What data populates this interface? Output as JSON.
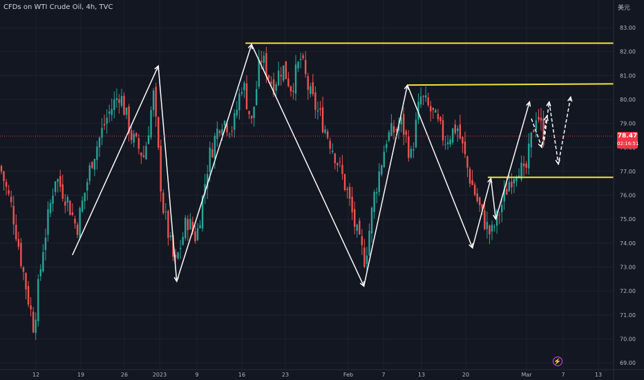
{
  "header": {
    "title": "CFDs on WTI Crude Oil, 4h, TVC",
    "currency": "美元"
  },
  "price_tag": {
    "price": "78.47",
    "countdown": "02:16:51"
  },
  "colors": {
    "background": "#131722",
    "grid": "#1e222d",
    "up": "#26a69a",
    "down": "#ef5350",
    "level_line": "#f5e63c",
    "drawing": "#ffffff",
    "price_line": "#f23645",
    "price_tag_bg": "#f23645",
    "axis_text": "#b2b5be"
  },
  "icons": {
    "replay": "lightning-icon"
  },
  "chart_data": {
    "type": "candlestick",
    "title": "CFDs on WTI Crude Oil, 4h, TVC",
    "y_unit": "美元",
    "ylim": [
      68.8,
      84.0
    ],
    "y_ticks": [
      "83.00",
      "82.00",
      "81.00",
      "80.00",
      "79.00",
      "78.00",
      "77.00",
      "76.00",
      "75.00",
      "74.00",
      "73.00",
      "72.00",
      "71.00",
      "70.00",
      "69.00"
    ],
    "x_ticks": [
      "12",
      "19",
      "26",
      "2023",
      "9",
      "16",
      "23",
      "Feb",
      "7",
      "13",
      "20",
      "Mar",
      "7",
      "13"
    ],
    "last_price": 78.47,
    "grid": true,
    "series": [
      {
        "name": "",
        "approx_close_path": [
          [
            0,
            77.2
          ],
          [
            0.02,
            75.4
          ],
          [
            0.04,
            72.5
          ],
          [
            0.055,
            70.5
          ],
          [
            0.07,
            73.8
          ],
          [
            0.09,
            76.8
          ],
          [
            0.11,
            75.8
          ],
          [
            0.125,
            74.6
          ],
          [
            0.15,
            77.5
          ],
          [
            0.175,
            79.3
          ],
          [
            0.195,
            80.3
          ],
          [
            0.215,
            78.4
          ],
          [
            0.235,
            77.6
          ],
          [
            0.25,
            80.2
          ],
          [
            0.265,
            75.6
          ],
          [
            0.285,
            73.0
          ],
          [
            0.305,
            75.0
          ],
          [
            0.32,
            74.2
          ],
          [
            0.34,
            77.5
          ],
          [
            0.36,
            79.2
          ],
          [
            0.38,
            78.8
          ],
          [
            0.395,
            80.8
          ],
          [
            0.41,
            79.0
          ],
          [
            0.425,
            81.8
          ],
          [
            0.445,
            80.6
          ],
          [
            0.46,
            81.4
          ],
          [
            0.475,
            80.5
          ],
          [
            0.49,
            81.7
          ],
          [
            0.505,
            80.2
          ],
          [
            0.525,
            79.1
          ],
          [
            0.545,
            77.8
          ],
          [
            0.565,
            76.2
          ],
          [
            0.585,
            74.0
          ],
          [
            0.595,
            73.3
          ],
          [
            0.61,
            76.0
          ],
          [
            0.63,
            78.4
          ],
          [
            0.655,
            79.0
          ],
          [
            0.67,
            77.6
          ],
          [
            0.685,
            80.1
          ],
          [
            0.705,
            79.4
          ],
          [
            0.725,
            78.3
          ],
          [
            0.745,
            78.9
          ],
          [
            0.765,
            76.8
          ],
          [
            0.785,
            75.2
          ],
          [
            0.8,
            74.3
          ],
          [
            0.815,
            75.4
          ],
          [
            0.83,
            76.6
          ],
          [
            0.845,
            77.3
          ],
          [
            0.855,
            76.7
          ],
          [
            0.865,
            78.2
          ],
          [
            0.875,
            79.6
          ],
          [
            0.885,
            78.47
          ]
        ]
      }
    ],
    "annotations": {
      "horizontal_levels": [
        {
          "price_start": 82.35,
          "price_end": 82.35,
          "from_x": 0.4,
          "to_x": 1.0
        },
        {
          "price_start": 80.6,
          "price_end": 80.65,
          "from_x": 0.665,
          "to_x": 1.0
        },
        {
          "price_start": 76.75,
          "price_end": 76.75,
          "from_x": 0.795,
          "to_x": 1.0
        }
      ],
      "zigzag_arrows": [
        [
          [
            0.118,
            73.5
          ],
          [
            0.258,
            81.4
          ]
        ],
        [
          [
            0.258,
            81.4
          ],
          [
            0.288,
            72.4
          ]
        ],
        [
          [
            0.288,
            72.4
          ],
          [
            0.41,
            82.3
          ]
        ],
        [
          [
            0.41,
            82.3
          ],
          [
            0.593,
            72.2
          ]
        ],
        [
          [
            0.593,
            72.2
          ],
          [
            0.664,
            80.6
          ]
        ],
        [
          [
            0.664,
            80.6
          ],
          [
            0.77,
            73.8
          ]
        ],
        [
          [
            0.77,
            73.8
          ],
          [
            0.8,
            76.7
          ]
        ],
        [
          [
            0.8,
            76.7
          ],
          [
            0.808,
            75.0
          ]
        ],
        [
          [
            0.808,
            75.0
          ],
          [
            0.863,
            79.9
          ]
        ]
      ],
      "projected_arrows": [
        [
          [
            0.866,
            79.2
          ],
          [
            0.883,
            78.0
          ],
          [
            0.891,
            79.3
          ]
        ],
        [
          [
            0.887,
            78.3
          ],
          [
            0.895,
            79.9
          ],
          [
            0.91,
            77.3
          ],
          [
            0.93,
            80.1
          ]
        ]
      ]
    }
  }
}
